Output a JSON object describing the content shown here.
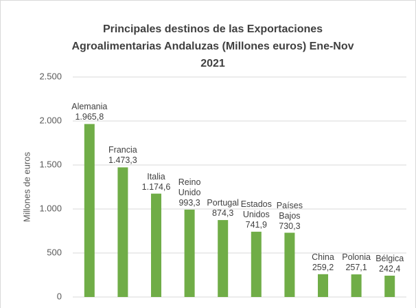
{
  "chart_data": {
    "type": "bar",
    "title": "Principales destinos de las Exportaciones Agroalimentarias Andaluzas (Millones euros) Ene-Nov 2021",
    "y_label": "Millones de euros",
    "categories": [
      "Alemania",
      "Francia",
      "Italia",
      "Reino Unido",
      "Portugal",
      "Estados Unidos",
      "Países Bajos",
      "China",
      "Polonia",
      "Bélgica"
    ],
    "values": [
      1965.8,
      1473.3,
      1174.6,
      993.3,
      874.3,
      741.9,
      730.3,
      259.2,
      257.1,
      242.4
    ],
    "value_labels": [
      "1.965,8",
      "1.473,3",
      "1.174,6",
      "993,3",
      "874,3",
      "741,9",
      "730,3",
      "259,2",
      "257,1",
      "242,4"
    ],
    "color": "#70ad47",
    "ylim": [
      0,
      2500
    ],
    "yticks": [
      0,
      500,
      {
        "value": 1000,
        "label": "1.000"
      },
      {
        "value": 1500,
        "label": "1.500"
      },
      {
        "value": 2000,
        "label": "2.000"
      },
      {
        "value": 2500,
        "label": "2.500"
      }
    ],
    "grid": true
  }
}
